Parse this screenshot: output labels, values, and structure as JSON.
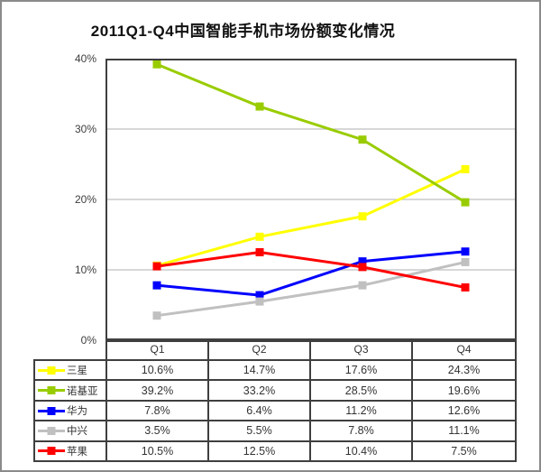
{
  "title": "2011Q1-Q4中国智能手机市场份额变化情况",
  "chart_data": {
    "type": "line",
    "title": "2011Q1-Q4中国智能手机市场份额变化情况",
    "categories": [
      "Q1",
      "Q2",
      "Q3",
      "Q4"
    ],
    "series": [
      {
        "name": "三星",
        "color": "#FFFF00",
        "values": [
          10.6,
          14.7,
          17.6,
          24.3
        ]
      },
      {
        "name": "诺基亚",
        "color": "#99CC00",
        "values": [
          39.2,
          33.2,
          28.5,
          19.6
        ]
      },
      {
        "name": "华为",
        "color": "#0000FF",
        "values": [
          7.8,
          6.4,
          11.2,
          12.6
        ]
      },
      {
        "name": "中兴",
        "color": "#C0C0C0",
        "values": [
          3.5,
          5.5,
          7.8,
          11.1
        ]
      },
      {
        "name": "苹果",
        "color": "#FF0000",
        "values": [
          10.5,
          12.5,
          10.4,
          7.5
        ]
      }
    ],
    "xlabel": "",
    "ylabel": "",
    "ylim": [
      0,
      40
    ],
    "yticks": [
      {
        "label": "0%",
        "value": 0
      },
      {
        "label": "10%",
        "value": 10
      },
      {
        "label": "20%",
        "value": 20
      },
      {
        "label": "30%",
        "value": 30
      },
      {
        "label": "40%",
        "value": 40
      }
    ],
    "grid": true,
    "value_suffix": "%",
    "legend_position": "table-left",
    "colors": {
      "plot_border": "#3f3f3f",
      "gridline": "#bfbfbf",
      "text": "#333333"
    }
  }
}
